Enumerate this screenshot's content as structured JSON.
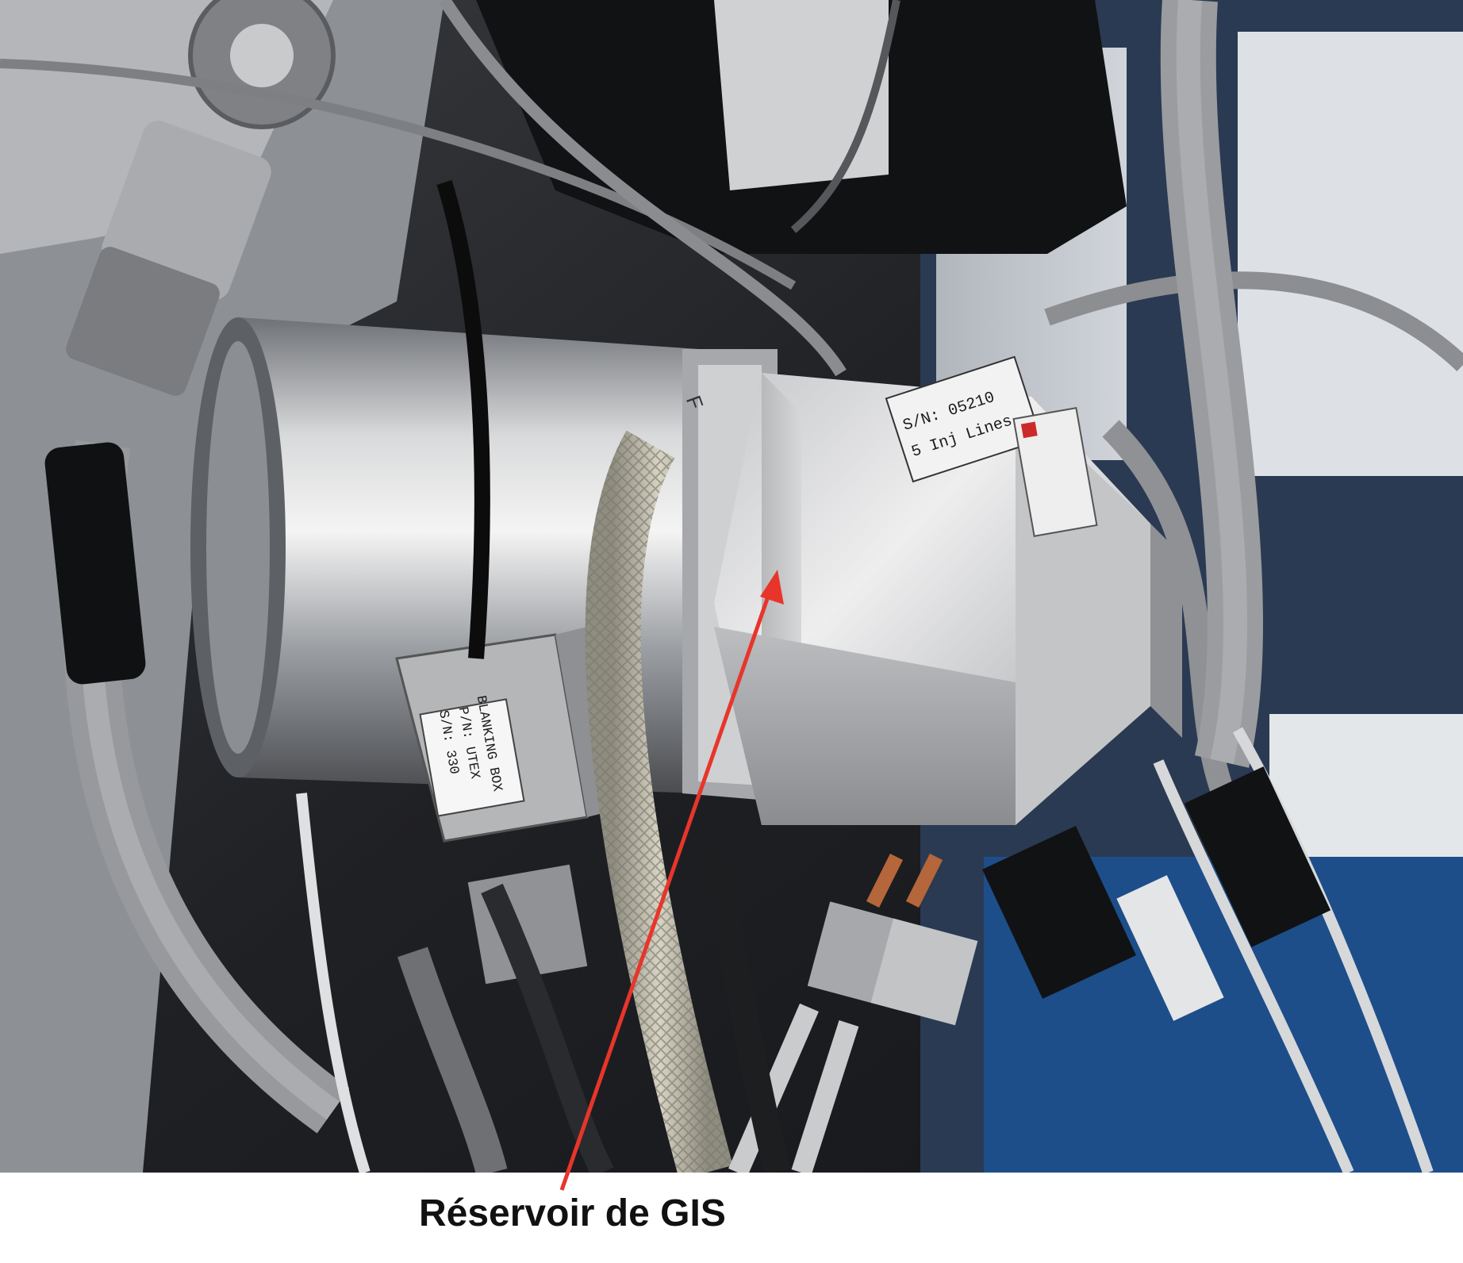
{
  "caption": {
    "text": "Réservoir de GIS"
  },
  "photo_labels": {
    "blanking_box": {
      "line1": "BLANKING BOX",
      "line2": "P/N: UTEX",
      "line3": "S/N: 330"
    },
    "cylinder_label": {
      "line1": "S/N: 05210",
      "line2": "5 Inj Lines"
    },
    "flange_mark": "F"
  },
  "colors": {
    "arrow": "#e8352b",
    "caption": "#111111",
    "background": "#ffffff"
  }
}
